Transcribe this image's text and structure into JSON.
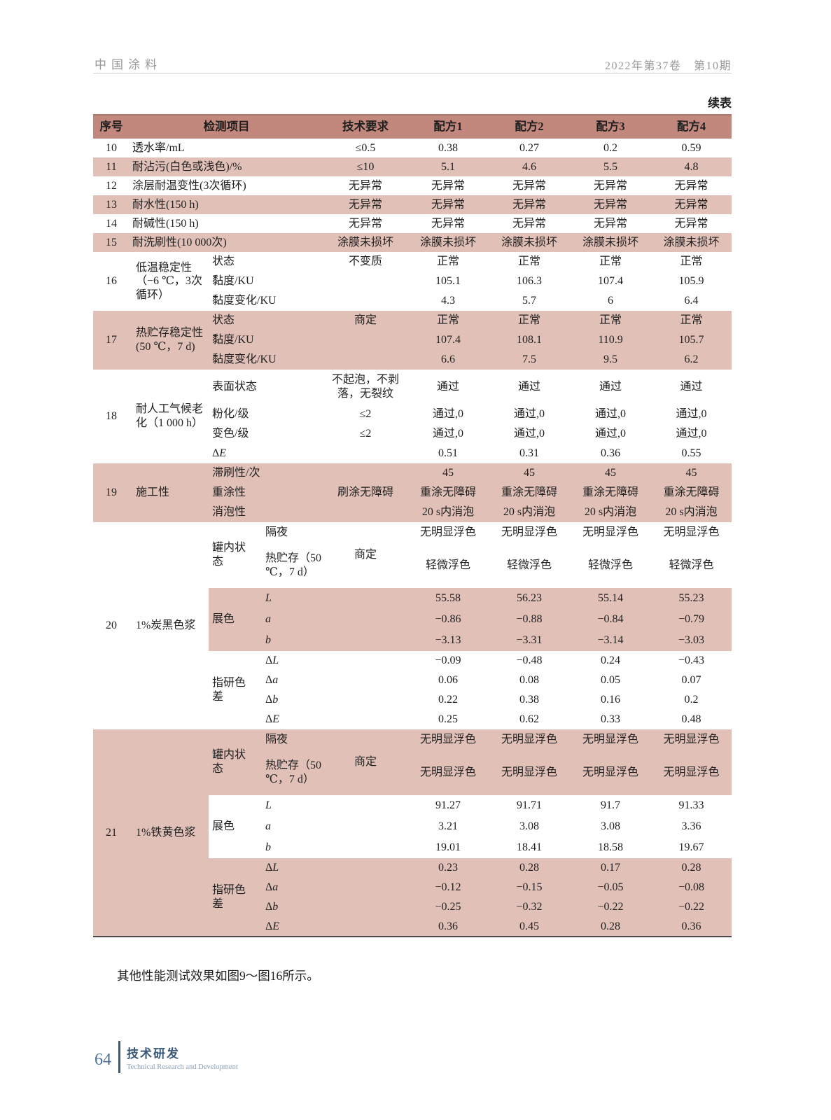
{
  "colors": {
    "headBg": "#c3887d",
    "bandBg": "#e1c0b8",
    "tableTop": "#a8756b",
    "tableBottom": "#4a4a4a",
    "ink": "#1f1f1f",
    "grayHead": "#97999b",
    "rule": "#c9cdcf",
    "footBlue": "#39587a",
    "footNum": "#4c6f93",
    "footEn": "#8ba1b6"
  },
  "page_header": {
    "journal": "中国涂料",
    "issue": "2022年第37卷　第10期"
  },
  "table": {
    "continued_label": "续表",
    "columns": [
      "序号",
      "检测项目",
      "技术要求",
      "配方1",
      "配方2",
      "配方3",
      "配方4"
    ],
    "rows": [
      {
        "type": "simple",
        "no": "10",
        "item": "透水率/mL",
        "req": "≤0.5",
        "values": [
          "0.38",
          "0.27",
          "0.2",
          "0.59"
        ],
        "shaded": false
      },
      {
        "type": "simple",
        "no": "11",
        "item": "耐沾污(白色或浅色)/%",
        "req": "≤10",
        "values": [
          "5.1",
          "4.6",
          "5.5",
          "4.8"
        ],
        "shaded": true
      },
      {
        "type": "simple",
        "no": "12",
        "item": "涂层耐温变性(3次循环)",
        "req": "无异常",
        "values": [
          "无异常",
          "无异常",
          "无异常",
          "无异常"
        ],
        "shaded": false
      },
      {
        "type": "simple",
        "no": "13",
        "item": "耐水性(150 h)",
        "req": "无异常",
        "values": [
          "无异常",
          "无异常",
          "无异常",
          "无异常"
        ],
        "shaded": true
      },
      {
        "type": "simple",
        "no": "14",
        "item": "耐碱性(150 h)",
        "req": "无异常",
        "values": [
          "无异常",
          "无异常",
          "无异常",
          "无异常"
        ],
        "shaded": false
      },
      {
        "type": "simple",
        "no": "15",
        "item": "耐洗刷性(10 000次)",
        "req": "涂膜未损坏",
        "values": [
          "涂膜未损坏",
          "涂膜未损坏",
          "涂膜未损坏",
          "涂膜未损坏"
        ],
        "shaded": true
      },
      {
        "type": "group",
        "no": "16",
        "item": "低温稳定性（−6 ℃，3次循环）",
        "shaded": false,
        "subs": [
          {
            "label": "状态",
            "req": "不变质",
            "values": [
              "正常",
              "正常",
              "正常",
              "正常"
            ]
          },
          {
            "label": "黏度/KU",
            "req": "",
            "values": [
              "105.1",
              "106.3",
              "107.4",
              "105.9"
            ]
          },
          {
            "label": "黏度变化/KU",
            "req": "",
            "values": [
              "4.3",
              "5.7",
              "6",
              "6.4"
            ]
          }
        ]
      },
      {
        "type": "group",
        "no": "17",
        "item": "热贮存稳定性(50 ℃，7 d)",
        "shaded": true,
        "subs": [
          {
            "label": "状态",
            "req": "商定",
            "values": [
              "正常",
              "正常",
              "正常",
              "正常"
            ]
          },
          {
            "label": "黏度/KU",
            "req": "",
            "values": [
              "107.4",
              "108.1",
              "110.9",
              "105.7"
            ]
          },
          {
            "label": "黏度变化/KU",
            "req": "",
            "values": [
              "6.6",
              "7.5",
              "9.5",
              "6.2"
            ]
          }
        ]
      },
      {
        "type": "group",
        "no": "18",
        "item": "耐人工气候老化（1 000 h）",
        "shaded": false,
        "subs": [
          {
            "label": "表面状态",
            "req": "不起泡，不剥落，无裂纹",
            "values": [
              "通过",
              "通过",
              "通过",
              "通过"
            ],
            "tall": true
          },
          {
            "label": "粉化/级",
            "req": "≤2",
            "values": [
              "通过,0",
              "通过,0",
              "通过,0",
              "通过,0"
            ]
          },
          {
            "label": "变色/级",
            "req": "≤2",
            "values": [
              "通过,0",
              "通过,0",
              "通过,0",
              "通过,0"
            ]
          },
          {
            "label": "ΔE",
            "req": "",
            "values": [
              "0.51",
              "0.31",
              "0.36",
              "0.55"
            ]
          }
        ]
      },
      {
        "type": "group",
        "no": "19",
        "item": "施工性",
        "shaded": true,
        "subs": [
          {
            "label": "滞刷性/次",
            "req": "",
            "values": [
              "45",
              "45",
              "45",
              "45"
            ]
          },
          {
            "label": "重涂性",
            "req": "刷涂无障碍",
            "values": [
              "重涂无障碍",
              "重涂无障碍",
              "重涂无障碍",
              "重涂无障碍"
            ]
          },
          {
            "label": "消泡性",
            "req": "",
            "values": [
              "20 s内消泡",
              "20 s内消泡",
              "20 s内消泡",
              "20 s内消泡"
            ]
          }
        ]
      },
      {
        "type": "paste",
        "no": "20",
        "item": "1%炭黑色浆",
        "base_shaded": false,
        "blocks": [
          {
            "label": "罐内状态",
            "req": "商定",
            "shaded": false,
            "subs": [
              {
                "label": "隔夜",
                "values": [
                  "无明显浮色",
                  "无明显浮色",
                  "无明显浮色",
                  "无明显浮色"
                ]
              },
              {
                "label": "热贮存（50 ℃，7 d）",
                "values": [
                  "轻微浮色",
                  "轻微浮色",
                  "轻微浮色",
                  "轻微浮色"
                ],
                "tall": true
              }
            ]
          },
          {
            "label": "展色",
            "req": "",
            "shaded": true,
            "subs": [
              {
                "label": "L",
                "values": [
                  "55.58",
                  "56.23",
                  "55.14",
                  "55.23"
                ]
              },
              {
                "label": "a",
                "values": [
                  "−0.86",
                  "−0.88",
                  "−0.84",
                  "−0.79"
                ]
              },
              {
                "label": "b",
                "values": [
                  "−3.13",
                  "−3.31",
                  "−3.14",
                  "−3.03"
                ]
              }
            ]
          },
          {
            "label": "指研色差",
            "req": "",
            "shaded": false,
            "subs": [
              {
                "label": "ΔL",
                "values": [
                  "−0.09",
                  "−0.48",
                  "0.24",
                  "−0.43"
                ]
              },
              {
                "label": "Δa",
                "values": [
                  "0.06",
                  "0.08",
                  "0.05",
                  "0.07"
                ]
              },
              {
                "label": "Δb",
                "values": [
                  "0.22",
                  "0.38",
                  "0.16",
                  "0.2"
                ]
              },
              {
                "label": "ΔE",
                "values": [
                  "0.25",
                  "0.62",
                  "0.33",
                  "0.48"
                ]
              }
            ]
          }
        ]
      },
      {
        "type": "paste",
        "no": "21",
        "item": "1%铁黄色浆",
        "base_shaded": true,
        "blocks": [
          {
            "label": "罐内状态",
            "req": "商定",
            "shaded": true,
            "subs": [
              {
                "label": "隔夜",
                "values": [
                  "无明显浮色",
                  "无明显浮色",
                  "无明显浮色",
                  "无明显浮色"
                ]
              },
              {
                "label": "热贮存（50 ℃，7 d）",
                "values": [
                  "无明显浮色",
                  "无明显浮色",
                  "无明显浮色",
                  "无明显浮色"
                ],
                "tall": true
              }
            ]
          },
          {
            "label": "展色",
            "req": "",
            "shaded": false,
            "subs": [
              {
                "label": "L",
                "values": [
                  "91.27",
                  "91.71",
                  "91.7",
                  "91.33"
                ]
              },
              {
                "label": "a",
                "values": [
                  "3.21",
                  "3.08",
                  "3.08",
                  "3.36"
                ]
              },
              {
                "label": "b",
                "values": [
                  "19.01",
                  "18.41",
                  "18.58",
                  "19.67"
                ]
              }
            ]
          },
          {
            "label": "指研色差",
            "req": "",
            "shaded": true,
            "subs": [
              {
                "label": "ΔL",
                "values": [
                  "0.23",
                  "0.28",
                  "0.17",
                  "0.28"
                ]
              },
              {
                "label": "Δa",
                "values": [
                  "−0.12",
                  "−0.15",
                  "−0.05",
                  "−0.08"
                ]
              },
              {
                "label": "Δb",
                "values": [
                  "−0.25",
                  "−0.32",
                  "−0.22",
                  "−0.22"
                ]
              },
              {
                "label": "ΔE",
                "values": [
                  "0.36",
                  "0.45",
                  "0.28",
                  "0.36"
                ]
              }
            ]
          }
        ]
      }
    ]
  },
  "body_text": "其他性能测试效果如图9～图16所示。",
  "footer": {
    "page_number": "64",
    "section_cn": "技术研发",
    "section_en": "Technical Research and Development"
  }
}
